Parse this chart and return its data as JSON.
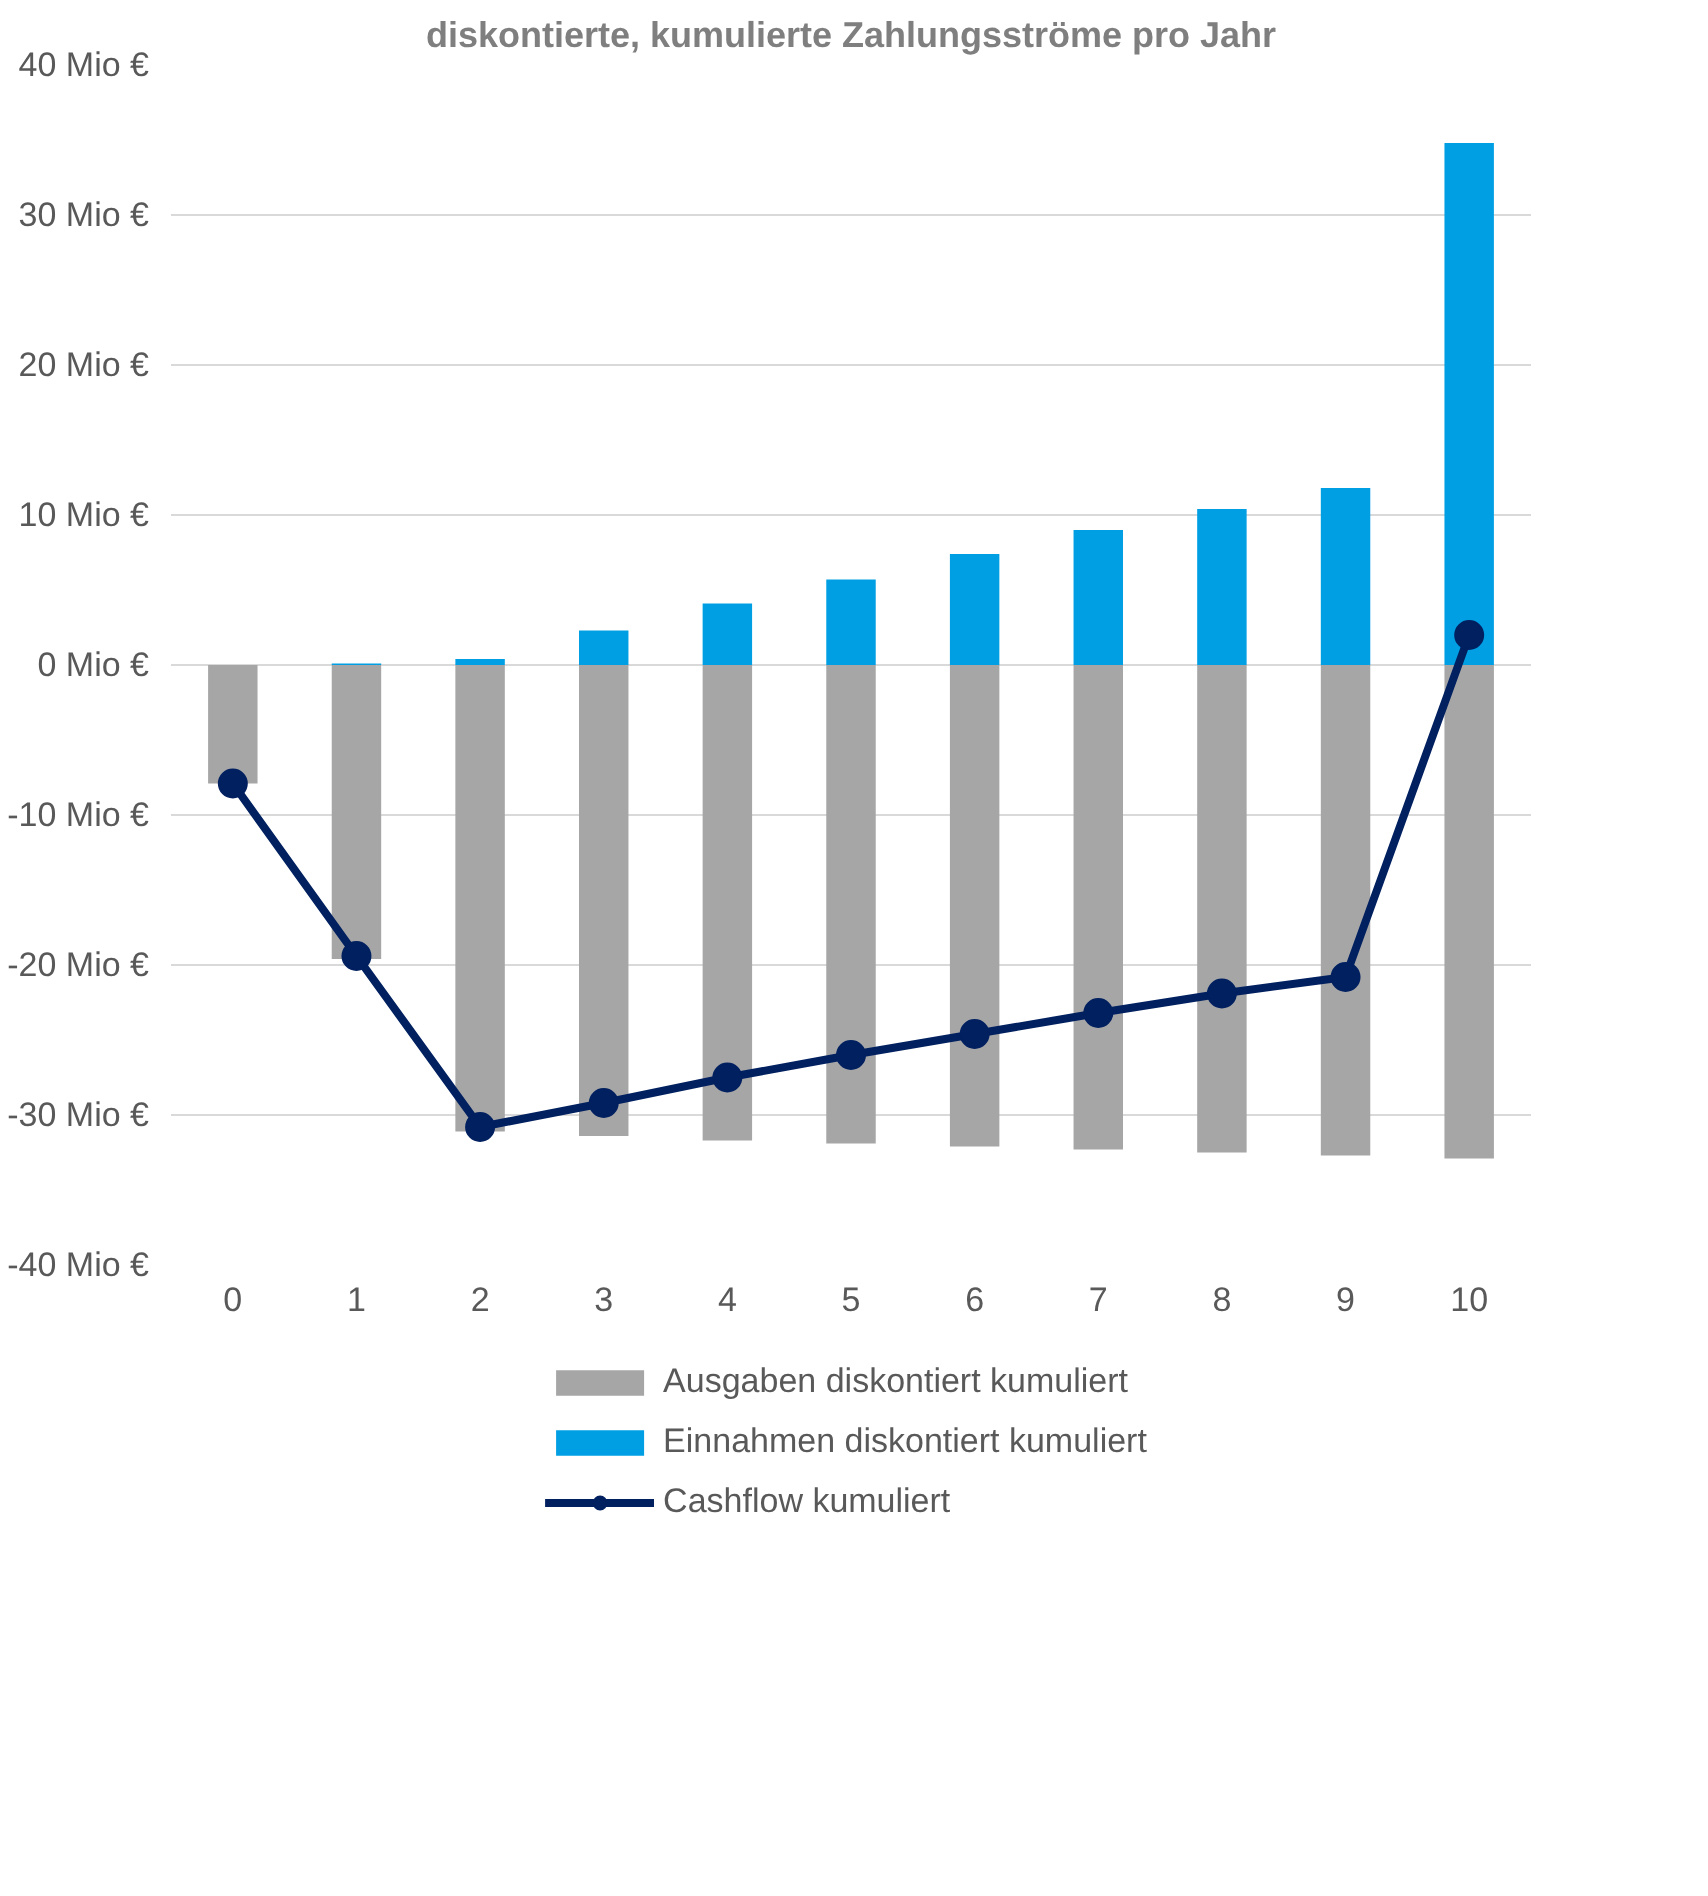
{
  "chart_data": {
    "type": "bar",
    "title": "diskontierte, kumulierte Zahlungsströme pro Jahr",
    "categories": [
      "0",
      "1",
      "2",
      "3",
      "4",
      "5",
      "6",
      "7",
      "8",
      "9",
      "10"
    ],
    "stacked": true,
    "series": [
      {
        "name": "Ausgaben diskontiert kumuliert",
        "color": "#a6a6a6",
        "values": [
          -7.9,
          -19.6,
          -31.1,
          -31.4,
          -31.7,
          -31.9,
          -32.1,
          -32.3,
          -32.5,
          -32.7,
          -32.9
        ]
      },
      {
        "name": "Einnahmen diskontiert kumuliert",
        "color": "#009fe3",
        "values": [
          0,
          0.1,
          0.4,
          2.3,
          4.1,
          5.7,
          7.4,
          9.0,
          10.4,
          11.8,
          34.8
        ]
      },
      {
        "name": "Cashflow kumuliert",
        "type": "line",
        "color": "#002060",
        "marker": "circle",
        "values": [
          -7.9,
          -19.4,
          -30.8,
          -29.2,
          -27.5,
          -26.0,
          -24.6,
          -23.2,
          -21.9,
          -20.8,
          2.0
        ]
      }
    ],
    "ylim": [
      -40,
      40
    ],
    "yticks": [
      {
        "value": -40,
        "label": "-40 Mio €"
      },
      {
        "value": -30,
        "label": "-30 Mio €"
      },
      {
        "value": -20,
        "label": "-20 Mio €"
      },
      {
        "value": -10,
        "label": "-10 Mio €"
      },
      {
        "value": 0,
        "label": "0 Mio €"
      },
      {
        "value": 10,
        "label": "10 Mio €"
      },
      {
        "value": 20,
        "label": "20 Mio €"
      },
      {
        "value": 30,
        "label": "30 Mio €"
      },
      {
        "value": 40,
        "label": "40 Mio €"
      }
    ],
    "grid": "y",
    "legend": "bottom"
  }
}
